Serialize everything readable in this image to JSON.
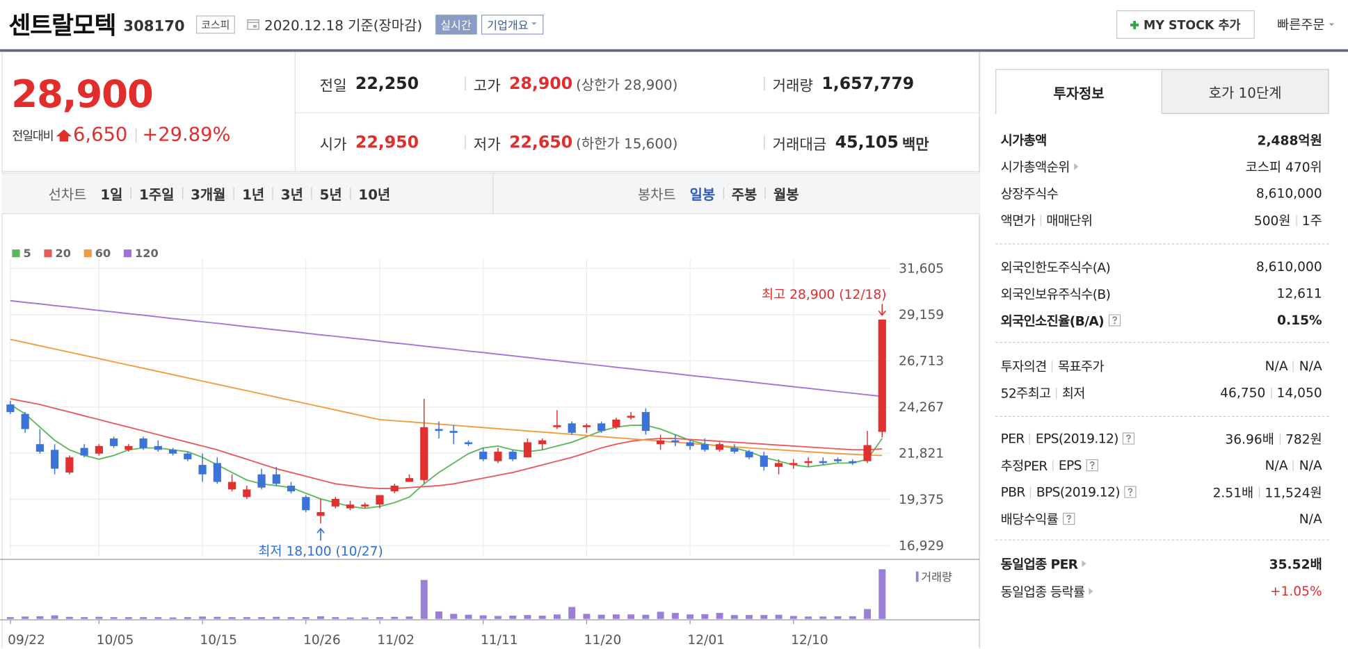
{
  "header": {
    "title": "센트랄모텍",
    "code": "308170",
    "market": "코스피",
    "date": "2020.12.18 기준(장마감)",
    "realtime": "실시간",
    "overview": "기업개요",
    "my_stock": "MY STOCK 추가",
    "quick_order": "빠른주문"
  },
  "quote": {
    "price": "28,900",
    "change_label": "전일대비",
    "change": "6,650",
    "change_pct": "+29.89%",
    "stats": [
      {
        "label": "전일",
        "value": "22,250"
      },
      {
        "label": "고가",
        "value": "28,900",
        "note": "(상한가 28,900)",
        "color": "#e22d2d"
      },
      {
        "label": "거래량",
        "value": "1,657,779"
      },
      {
        "label": "시가",
        "value": "22,950",
        "color": "#e22d2d"
      },
      {
        "label": "저가",
        "value": "22,650",
        "note": "(하한가 15,600)",
        "color": "#e22d2d"
      },
      {
        "label": "거래대금",
        "value": "45,105",
        "unit": "백만"
      }
    ]
  },
  "chart_tabs": {
    "line_label": "선차트",
    "periods": [
      "1일",
      "1주일",
      "3개월",
      "1년",
      "3년",
      "5년",
      "10년"
    ],
    "candle_label": "봉차트",
    "candle_periods": [
      "일봉",
      "주봉",
      "월봉"
    ],
    "active_candle": 0
  },
  "chart_data": {
    "type": "candlestick",
    "categories": [
      "09/22",
      null,
      null,
      null,
      null,
      null,
      "10/05",
      null,
      null,
      null,
      null,
      null,
      null,
      "10/15",
      null,
      null,
      null,
      null,
      null,
      null,
      "10/26",
      null,
      null,
      null,
      null,
      "11/02",
      null,
      null,
      null,
      null,
      null,
      null,
      "11/11",
      null,
      null,
      null,
      null,
      null,
      null,
      "11/20",
      null,
      null,
      null,
      null,
      null,
      null,
      "12/01",
      null,
      null,
      null,
      null,
      null,
      null,
      "12/10",
      null,
      null,
      null,
      null,
      null,
      null
    ],
    "open": [
      24400,
      23900,
      22300,
      22000,
      20800,
      22100,
      21800,
      22600,
      22000,
      22600,
      22200,
      22000,
      21800,
      21200,
      21300,
      19900,
      19500,
      20700,
      20700,
      20100,
      19500,
      18500,
      19000,
      18900,
      19000,
      19100,
      19800,
      20300,
      20400,
      23100,
      23000,
      22400,
      21900,
      21400,
      21900,
      21600,
      22300,
      23200,
      23400,
      23200,
      23400,
      23200,
      23700,
      24000,
      22300,
      22500,
      22400,
      22300,
      22000,
      22100,
      21900,
      21700,
      21100,
      21200,
      21300,
      21400,
      21500,
      21400,
      21400,
      22950
    ],
    "high": [
      24600,
      24000,
      23100,
      22300,
      21700,
      22300,
      22300,
      22700,
      22300,
      22700,
      22500,
      22100,
      21900,
      21800,
      21600,
      20700,
      20100,
      21000,
      21100,
      20300,
      19600,
      19400,
      19500,
      19300,
      19200,
      19600,
      20200,
      20700,
      24700,
      23500,
      23300,
      22500,
      22100,
      22100,
      22000,
      22600,
      22600,
      24100,
      23500,
      23400,
      23500,
      23700,
      24000,
      24200,
      22800,
      22800,
      22500,
      22600,
      22400,
      22300,
      22000,
      21900,
      21500,
      21500,
      21600,
      21600,
      21600,
      21500,
      23000,
      28900
    ],
    "low": [
      23900,
      22900,
      21800,
      20700,
      20700,
      21600,
      21700,
      22100,
      21900,
      22000,
      21900,
      21700,
      21400,
      20300,
      20200,
      19800,
      19400,
      19900,
      20100,
      19700,
      18700,
      18100,
      18900,
      18800,
      18900,
      18900,
      19700,
      20300,
      20200,
      22600,
      22300,
      22200,
      21400,
      21300,
      21400,
      21600,
      22000,
      23100,
      22800,
      22900,
      22900,
      23100,
      23600,
      22800,
      22000,
      22200,
      22000,
      21900,
      21900,
      21800,
      21500,
      20900,
      20700,
      21000,
      21100,
      21200,
      21300,
      21200,
      21300,
      22650
    ],
    "close": [
      24000,
      23100,
      21900,
      21000,
      21600,
      21700,
      22200,
      22200,
      22200,
      22100,
      22000,
      21800,
      21500,
      20700,
      20300,
      20300,
      19900,
      20000,
      20200,
      19800,
      18800,
      18700,
      19400,
      19100,
      19100,
      19600,
      20100,
      20500,
      23200,
      23000,
      22900,
      22300,
      21500,
      21900,
      21500,
      22400,
      22500,
      23300,
      22900,
      23300,
      23000,
      23600,
      23800,
      23000,
      22500,
      22400,
      22200,
      22000,
      22300,
      21900,
      21600,
      21100,
      21300,
      21300,
      21400,
      21300,
      21400,
      21300,
      22250,
      28900
    ],
    "up_color": "#e03131",
    "down_color": "#3b73d9",
    "ylim": [
      16929,
      31605
    ],
    "yticks": [
      {
        "value": 16929,
        "label": "16,929"
      },
      {
        "value": 19375,
        "label": "19,375"
      },
      {
        "value": 21821,
        "label": "21,821"
      },
      {
        "value": 24267,
        "label": "24,267"
      },
      {
        "value": 26713,
        "label": "26,713"
      },
      {
        "value": 29159,
        "label": "29,159"
      },
      {
        "value": 31605,
        "label": "31,605"
      }
    ],
    "grid": true,
    "ma_series": [
      {
        "name": "5",
        "color": "#5cb85c",
        "values": [
          24400,
          23900,
          23200,
          22500,
          22000,
          21700,
          21500,
          21700,
          22000,
          22100,
          22100,
          22000,
          21900,
          21600,
          21200,
          20800,
          20400,
          20200,
          20100,
          20000,
          19700,
          19400,
          19200,
          19000,
          18900,
          19000,
          19200,
          19500,
          20200,
          20800,
          21300,
          21800,
          22100,
          22200,
          22000,
          21900,
          22000,
          22200,
          22400,
          22700,
          23000,
          23200,
          23300,
          23300,
          23100,
          22800,
          22500,
          22300,
          22200,
          22100,
          21900,
          21600,
          21400,
          21200,
          21100,
          21200,
          21300,
          21300,
          21500,
          22600
        ]
      },
      {
        "name": "20",
        "color": "#e85a5a",
        "values": [
          24700,
          24550,
          24400,
          24200,
          24000,
          23800,
          23600,
          23400,
          23200,
          23000,
          22800,
          22600,
          22400,
          22200,
          22000,
          21750,
          21500,
          21250,
          21000,
          20800,
          20600,
          20400,
          20200,
          20100,
          20000,
          19950,
          19950,
          20000,
          20050,
          20100,
          20200,
          20350,
          20500,
          20650,
          20800,
          21000,
          21200,
          21400,
          21600,
          21850,
          22100,
          22300,
          22450,
          22550,
          22600,
          22600,
          22550,
          22500,
          22450,
          22400,
          22350,
          22300,
          22250,
          22200,
          22150,
          22100,
          22050,
          22000,
          22000,
          22050
        ]
      },
      {
        "name": "60",
        "color": "#f39a3c",
        "values": [
          27850,
          27680,
          27510,
          27340,
          27170,
          27000,
          26830,
          26660,
          26490,
          26320,
          26150,
          25980,
          25810,
          25640,
          25470,
          25300,
          25130,
          24960,
          24790,
          24620,
          24450,
          24280,
          24110,
          23940,
          23770,
          23600,
          23540,
          23480,
          23420,
          23360,
          23300,
          23240,
          23180,
          23120,
          23060,
          23000,
          22940,
          22880,
          22820,
          22760,
          22700,
          22640,
          22580,
          22520,
          22460,
          22400,
          22340,
          22280,
          22220,
          22160,
          22100,
          22050,
          22000,
          21950,
          21900,
          21850,
          21800,
          21760,
          21720,
          21700
        ]
      },
      {
        "name": "120",
        "color": "#a173d8",
        "values": [
          29900,
          29810,
          29730,
          29640,
          29560,
          29470,
          29380,
          29300,
          29210,
          29130,
          29040,
          28950,
          28870,
          28780,
          28700,
          28610,
          28520,
          28440,
          28350,
          28270,
          28180,
          28090,
          28010,
          27920,
          27840,
          27750,
          27660,
          27580,
          27490,
          27410,
          27320,
          27230,
          27150,
          27060,
          26980,
          26890,
          26800,
          26720,
          26630,
          26550,
          26460,
          26370,
          26290,
          26200,
          26120,
          26030,
          25940,
          25860,
          25770,
          25690,
          25600,
          25510,
          25430,
          25340,
          25260,
          25170,
          25080,
          25000,
          24910,
          24830
        ]
      }
    ],
    "volume": {
      "label": "거래량",
      "color": "#9b7fd4",
      "ylim": [
        0,
        1700000
      ],
      "values": [
        60000,
        80000,
        90000,
        120000,
        70000,
        60000,
        70000,
        60000,
        60000,
        60000,
        60000,
        50000,
        60000,
        80000,
        70000,
        60000,
        60000,
        60000,
        70000,
        60000,
        60000,
        90000,
        60000,
        50000,
        50000,
        60000,
        70000,
        80000,
        1300000,
        250000,
        170000,
        140000,
        120000,
        100000,
        110000,
        130000,
        110000,
        150000,
        400000,
        170000,
        140000,
        150000,
        150000,
        140000,
        240000,
        200000,
        150000,
        160000,
        200000,
        130000,
        130000,
        130000,
        140000,
        100000,
        80000,
        80000,
        90000,
        90000,
        330000,
        1657779
      ]
    },
    "annotations": {
      "high": "최고 28,900 (12/18)",
      "low": "최저 18,100 (10/27)"
    }
  },
  "side_panel": {
    "tabs": [
      "투자정보",
      "호가 10단계"
    ],
    "groups": [
      [
        {
          "label": [
            "시가총액"
          ],
          "value": [
            "2,488억원"
          ],
          "bold": true
        },
        {
          "label": [
            "시가총액순위"
          ],
          "value": [
            "코스피 470위"
          ],
          "link": true
        },
        {
          "label": [
            "상장주식수"
          ],
          "value": [
            "8,610,000"
          ]
        },
        {
          "label": [
            "액면가",
            "매매단위"
          ],
          "value": [
            "500원",
            "1주"
          ]
        }
      ],
      [
        {
          "label": [
            "외국인한도주식수(A)"
          ],
          "value": [
            "8,610,000"
          ]
        },
        {
          "label": [
            "외국인보유주식수(B)"
          ],
          "value": [
            "12,611"
          ]
        },
        {
          "label": [
            "외국인소진율(B/A)"
          ],
          "value": [
            "0.15%"
          ],
          "bold": true,
          "help": true
        }
      ],
      [
        {
          "label": [
            "투자의견",
            "목표주가"
          ],
          "value": [
            "N/A",
            "N/A"
          ]
        },
        {
          "label": [
            "52주최고",
            "최저"
          ],
          "value": [
            "46,750",
            "14,050"
          ]
        }
      ],
      [
        {
          "label": [
            "PER",
            "EPS(2019.12)"
          ],
          "value": [
            "36.96배",
            "782원"
          ],
          "help": true
        },
        {
          "label": [
            "추정PER",
            "EPS"
          ],
          "value": [
            "N/A",
            "N/A"
          ],
          "help": true
        },
        {
          "label": [
            "PBR",
            "BPS(2019.12)"
          ],
          "value": [
            "2.51배",
            "11,524원"
          ],
          "help": true
        },
        {
          "label": [
            "배당수익률"
          ],
          "value": [
            "N/A"
          ],
          "help": true
        }
      ],
      [
        {
          "label": [
            "동일업종 PER"
          ],
          "value": [
            "35.52배"
          ],
          "bold": true,
          "link": true
        },
        {
          "label": [
            "동일업종 등락률"
          ],
          "value": [
            "+1.05%"
          ],
          "link": true,
          "color": "#e22d2d"
        }
      ]
    ]
  }
}
